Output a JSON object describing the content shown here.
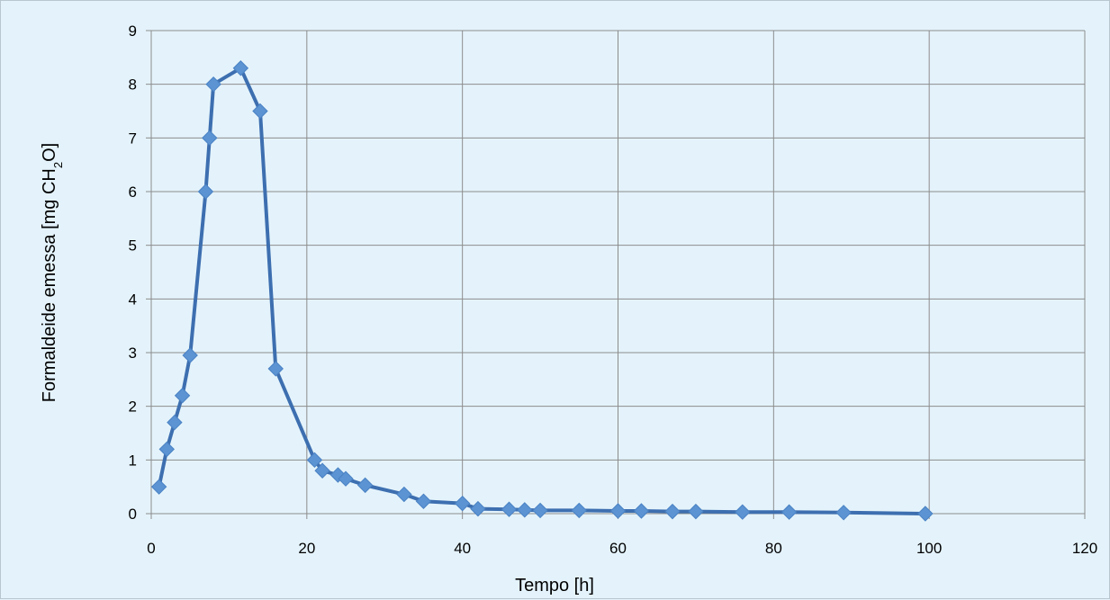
{
  "chart_data": {
    "type": "line",
    "xlabel": "Tempo [h]",
    "ylabel": {
      "prefix": "Formaldeide emessa [mg CH",
      "subscript": "2",
      "suffix": "O]"
    },
    "xlim": [
      0,
      120
    ],
    "ylim": [
      0,
      9
    ],
    "x_ticks": [
      0,
      20,
      40,
      60,
      80,
      100,
      120
    ],
    "y_ticks": [
      0,
      1,
      2,
      3,
      4,
      5,
      6,
      7,
      8,
      9
    ],
    "grid": true,
    "legend": "none",
    "marker": "diamond",
    "colors": {
      "line": "#3d6fb0",
      "marker": "#5b93d3",
      "grid": "#8c8c8c",
      "background": "#e4f3fb"
    },
    "series": [
      {
        "x": [
          1,
          2,
          3,
          4,
          5,
          7,
          7.5,
          8,
          11.5,
          14,
          16,
          21,
          22,
          24,
          25,
          27.5,
          32.5,
          35,
          40,
          42,
          46,
          48,
          50,
          55,
          60,
          63,
          67,
          70,
          76,
          82,
          89,
          99.5
        ],
        "y": [
          0.5,
          1.2,
          1.7,
          2.2,
          2.95,
          6.0,
          7.0,
          8.0,
          8.3,
          7.5,
          2.7,
          1.0,
          0.8,
          0.72,
          0.65,
          0.53,
          0.36,
          0.23,
          0.19,
          0.09,
          0.08,
          0.07,
          0.06,
          0.06,
          0.05,
          0.05,
          0.04,
          0.04,
          0.03,
          0.03,
          0.02,
          0.0
        ]
      }
    ]
  }
}
